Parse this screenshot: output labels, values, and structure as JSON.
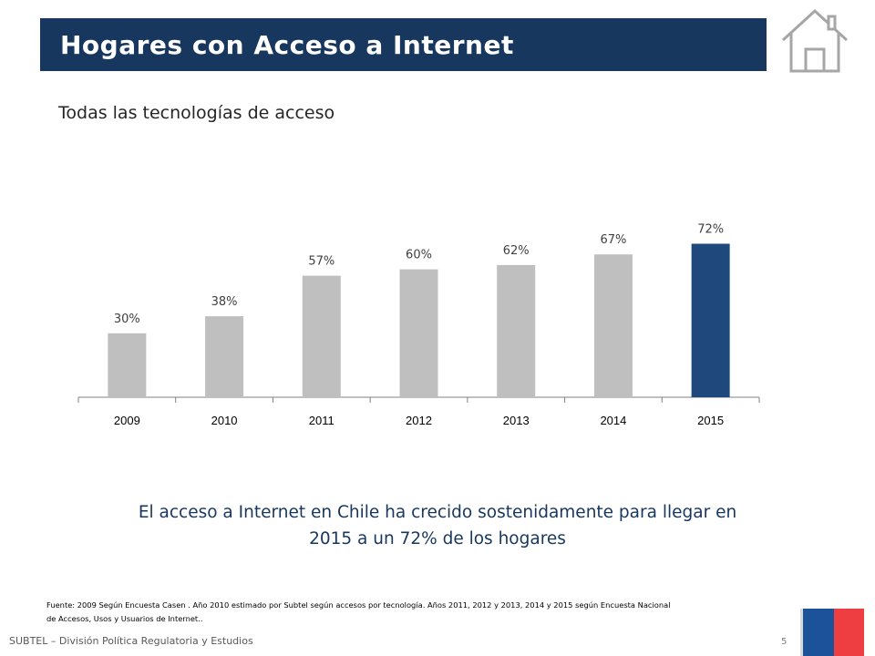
{
  "header": {
    "title": "Hogares con Acceso a Internet"
  },
  "subtitle": "Todas las tecnologías de acceso",
  "chart_data": {
    "type": "bar",
    "categories": [
      "2009",
      "2010",
      "2011",
      "2012",
      "2013",
      "2014",
      "2015"
    ],
    "values": [
      30,
      38,
      57,
      60,
      62,
      67,
      72
    ],
    "data_labels": [
      "30%",
      "38%",
      "57%",
      "60%",
      "62%",
      "67%",
      "72%"
    ],
    "title": "",
    "xlabel": "",
    "ylabel": "",
    "ylim": [
      0,
      100
    ],
    "grid": false,
    "colors": {
      "default": "#bfbfbf",
      "highlight": "#1f497d"
    },
    "highlight_index": 6
  },
  "summary": {
    "line1": "El acceso a Internet en Chile ha crecido sostenidamente para llegar en",
    "line2": "2015 a un 72% de los hogares"
  },
  "footnote": {
    "line1": "Fuente: 2009 Según  Encuesta Casen . Año 2010 estimado por Subtel según accesos por tecnología. Años 2011, 2012 y 2013, 2014 y 2015 según Encuesta Nacional",
    "line2": "de Accesos, Usos y Usuarios de Internet.."
  },
  "footer": {
    "text": "SUBTEL – División Política Regulatoria y Estudios",
    "page_number": "5"
  },
  "icons": {
    "home": "home-icon",
    "logo": "flag-logo"
  }
}
